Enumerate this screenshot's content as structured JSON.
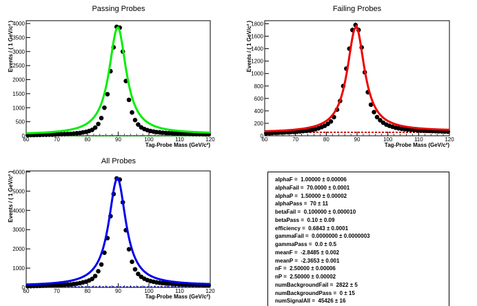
{
  "chart_data": [
    {
      "type": "scatter",
      "title": "Passing Probes",
      "xlabel": "Tag-Probe Mass (GeV/c²)",
      "ylabel": "Events / ( 1 GeV/c² )",
      "xlim": [
        60,
        120
      ],
      "ylim": [
        0,
        4100
      ],
      "xticks": [
        60,
        70,
        80,
        90,
        100,
        110,
        120
      ],
      "yticks": [
        0,
        500,
        1000,
        1500,
        2000,
        2500,
        3000,
        3500,
        4000
      ],
      "fit_color": "#00ee00",
      "background_color": "#00aa00",
      "background_level": 0,
      "fit": {
        "peak": 3850,
        "mean": 89.8,
        "width": 3.4,
        "baseline": 40
      },
      "x": [
        60,
        61,
        62,
        63,
        64,
        65,
        66,
        67,
        68,
        69,
        70,
        71,
        72,
        73,
        74,
        75,
        76,
        77,
        78,
        79,
        80,
        81,
        82,
        83,
        84,
        85,
        86,
        87,
        88,
        89,
        90,
        91,
        92,
        93,
        94,
        95,
        96,
        97,
        98,
        99,
        100,
        101,
        102,
        103,
        104,
        105,
        106,
        107,
        108,
        109,
        110,
        111,
        112,
        113,
        114,
        115,
        116,
        117,
        118,
        119
      ],
      "y": [
        20,
        25,
        25,
        30,
        30,
        35,
        35,
        40,
        40,
        45,
        50,
        55,
        60,
        65,
        70,
        80,
        90,
        100,
        120,
        140,
        170,
        210,
        290,
        420,
        630,
        1000,
        1480,
        2300,
        3150,
        3880,
        3850,
        3000,
        1950,
        1280,
        830,
        560,
        400,
        300,
        240,
        200,
        170,
        150,
        130,
        120,
        110,
        100,
        95,
        90,
        85,
        80,
        75,
        70,
        70,
        65,
        60,
        60,
        55,
        55,
        50,
        50
      ]
    },
    {
      "type": "scatter",
      "title": "Failing Probes",
      "xlabel": "Tag-Probe Mass (GeV/c²)",
      "ylabel": "Events / ( 1 GeV/c² )",
      "xlim": [
        60,
        120
      ],
      "ylim": [
        0,
        1850
      ],
      "xticks": [
        60,
        70,
        80,
        90,
        100,
        110,
        120
      ],
      "yticks": [
        0,
        200,
        400,
        600,
        800,
        1000,
        1200,
        1400,
        1600,
        1800
      ],
      "fit_color": "#ee0000",
      "background_color": "#cc0000",
      "background_level": 55,
      "fit": {
        "peak": 1740,
        "mean": 89.6,
        "width": 3.4,
        "baseline": 50
      },
      "x": [
        60,
        61,
        62,
        63,
        64,
        65,
        66,
        67,
        68,
        69,
        70,
        71,
        72,
        73,
        74,
        75,
        76,
        77,
        78,
        79,
        80,
        81,
        82,
        83,
        84,
        85,
        86,
        87,
        88,
        89,
        90,
        91,
        92,
        93,
        94,
        95,
        96,
        97,
        98,
        99,
        100,
        101,
        102,
        103,
        104,
        105,
        106,
        107,
        108,
        109,
        110,
        111,
        112,
        113,
        114,
        115,
        116,
        117,
        118,
        119
      ],
      "y": [
        40,
        42,
        45,
        48,
        50,
        52,
        55,
        58,
        60,
        62,
        65,
        70,
        75,
        80,
        85,
        95,
        105,
        120,
        140,
        160,
        190,
        230,
        300,
        420,
        560,
        800,
        1080,
        1400,
        1700,
        1780,
        1700,
        1420,
        1020,
        700,
        500,
        380,
        300,
        250,
        210,
        180,
        160,
        145,
        130,
        120,
        110,
        105,
        100,
        95,
        90,
        88,
        85,
        82,
        80,
        78,
        76,
        74,
        72,
        70,
        68,
        66
      ]
    },
    {
      "type": "scatter",
      "title": "All Probes",
      "xlabel": "Tag-Probe Mass (GeV/c²)",
      "ylabel": "Events / ( 1 GeV/c² )",
      "xlim": [
        60,
        120
      ],
      "ylim": [
        0,
        6050
      ],
      "xticks": [
        60,
        70,
        80,
        90,
        100,
        110,
        120
      ],
      "yticks": [
        0,
        1000,
        2000,
        3000,
        4000,
        5000,
        6000
      ],
      "fit_color": "#0000ee",
      "background_color": "#0000aa",
      "background_level": 20,
      "fit": {
        "peak": 5650,
        "mean": 89.7,
        "width": 3.4,
        "baseline": 80
      },
      "x": [
        60,
        61,
        62,
        63,
        64,
        65,
        66,
        67,
        68,
        69,
        70,
        71,
        72,
        73,
        74,
        75,
        76,
        77,
        78,
        79,
        80,
        81,
        82,
        83,
        84,
        85,
        86,
        87,
        88,
        89,
        90,
        91,
        92,
        93,
        94,
        95,
        96,
        97,
        98,
        99,
        100,
        101,
        102,
        103,
        104,
        105,
        106,
        107,
        108,
        109,
        110,
        111,
        112,
        113,
        114,
        115,
        116,
        117,
        118,
        119
      ],
      "y": [
        60,
        65,
        70,
        75,
        80,
        85,
        90,
        95,
        100,
        105,
        115,
        125,
        135,
        145,
        155,
        175,
        195,
        220,
        260,
        300,
        360,
        440,
        590,
        840,
        1190,
        1800,
        2560,
        3700,
        4850,
        5660,
        5600,
        4420,
        2970,
        1980,
        1330,
        940,
        700,
        550,
        450,
        380,
        330,
        295,
        260,
        240,
        220,
        205,
        195,
        185,
        175,
        168,
        160,
        152,
        150,
        143,
        136,
        134,
        127,
        125,
        118,
        116
      ]
    }
  ],
  "params_box": {
    "rows": [
      "alphaF =  1.00000 ± 0.00006",
      "alphaFail =  70.0000 ± 0.0001",
      "alphaP =  1.50000 ± 0.00002",
      "alphaPass =  70 ± 11",
      "betaFail =  0.100000 ± 0.000010",
      "betaPass =  0.10 ± 0.09",
      "efficiency =  0.6843 ± 0.0001",
      "gammaFail =  0.0000000 ± 0.0000003",
      "gammaPass =  0.0 ± 0.5",
      "meanF =  -2.8485 ± 0.002",
      "meanP =  -2.3653 ± 0.001",
      "nF =  2.50000 ± 0.00006",
      "nP =  2.50000 ± 0.00002",
      "numBackgroundFail =  2822 ± 5",
      "numBackgroundPass =  0 ± 15",
      "numSignalAll =  45426 ± 16"
    ]
  }
}
